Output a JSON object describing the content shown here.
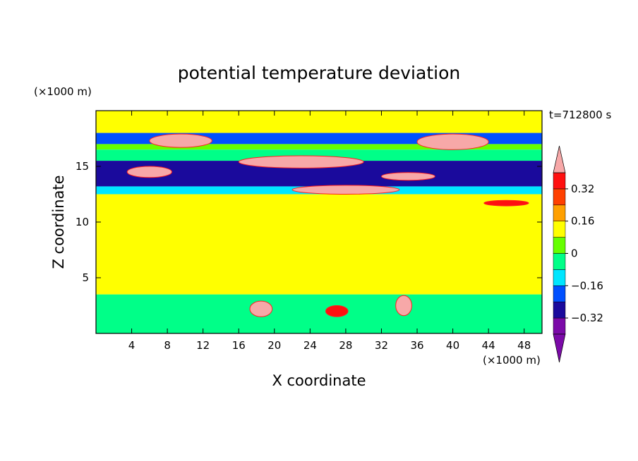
{
  "chart_data": {
    "type": "heatmap",
    "title": "potential temperature deviation",
    "xlabel": "X coordinate",
    "ylabel": "Z coordinate",
    "x_unit": "(×1000 m)",
    "y_unit": "(×1000 m)",
    "time_label": "t=712800 s",
    "xlim": [
      0,
      50
    ],
    "ylim": [
      0,
      20
    ],
    "xticks": [
      "4",
      "8",
      "12",
      "16",
      "20",
      "24",
      "28",
      "32",
      "36",
      "40",
      "44",
      "48"
    ],
    "yticks": [
      "5",
      "10",
      "15"
    ],
    "colorbar": {
      "levels": [
        -0.4,
        -0.32,
        -0.24,
        -0.16,
        -0.08,
        0,
        0.08,
        0.16,
        0.24,
        0.32,
        0.4
      ],
      "tick_labels": [
        "0.32",
        "0.16",
        "0",
        "−0.16",
        "−0.32"
      ],
      "tick_values": [
        0.32,
        0.16,
        0,
        -0.16,
        -0.32
      ],
      "colors": [
        "#7b0aa8",
        "#1a0a9c",
        "#0050ff",
        "#00e6ff",
        "#00ff88",
        "#66ff00",
        "#ffff00",
        "#ffa000",
        "#ff4000",
        "#ff1010",
        "#f7a8a8"
      ],
      "under_color": "#7b0aa8",
      "over_color": "#f7a8a8"
    },
    "bands": [
      {
        "z": [
          18,
          20
        ],
        "value": 0.04
      },
      {
        "z": [
          17,
          18
        ],
        "value": -0.3
      },
      {
        "z": [
          16.5,
          17
        ],
        "value": -0.05
      },
      {
        "z": [
          15.5,
          16.5
        ],
        "value": -0.12
      },
      {
        "z": [
          13.2,
          15.5
        ],
        "value": -0.38
      },
      {
        "z": [
          12.5,
          13.2
        ],
        "value": -0.2
      },
      {
        "z": [
          3.5,
          12.5
        ],
        "value": 0.02
      },
      {
        "z": [
          0,
          3.5
        ],
        "value": -0.1
      }
    ],
    "features": [
      {
        "kind": "blob",
        "x": 9.5,
        "z": 17.3,
        "w": 7,
        "h": 1.2,
        "value": 0.45
      },
      {
        "kind": "blob",
        "x": 40,
        "z": 17.2,
        "w": 8,
        "h": 1.4,
        "value": 0.45
      },
      {
        "kind": "blob",
        "x": 23,
        "z": 15.4,
        "w": 14,
        "h": 1.1,
        "value": 0.45
      },
      {
        "kind": "blob",
        "x": 6,
        "z": 14.5,
        "w": 5,
        "h": 1.0,
        "value": 0.45
      },
      {
        "kind": "blob",
        "x": 28,
        "z": 12.9,
        "w": 12,
        "h": 0.8,
        "value": 0.45
      },
      {
        "kind": "blob",
        "x": 35,
        "z": 14.1,
        "w": 6,
        "h": 0.7,
        "value": 0.45
      },
      {
        "kind": "blob",
        "x": 46,
        "z": 11.7,
        "w": 5,
        "h": 0.5,
        "value": 0.3
      },
      {
        "kind": "blob",
        "x": 18.5,
        "z": 2.2,
        "w": 2.5,
        "h": 1.4,
        "value": 0.45
      },
      {
        "kind": "blob",
        "x": 34.5,
        "z": 2.5,
        "w": 1.8,
        "h": 1.8,
        "value": 0.45
      },
      {
        "kind": "blob",
        "x": 27,
        "z": 2.0,
        "w": 2.5,
        "h": 1.0,
        "value": 0.3
      }
    ]
  }
}
